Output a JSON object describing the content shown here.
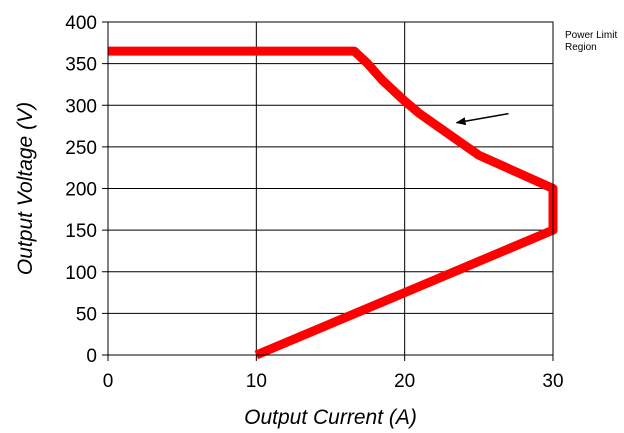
{
  "chart_data": {
    "type": "line",
    "xlabel": "Output Current (A)",
    "ylabel": "Output Voltage (V)",
    "xlim": [
      0,
      30
    ],
    "ylim": [
      0,
      400
    ],
    "x_ticks": [
      0,
      10,
      20,
      30
    ],
    "y_ticks": [
      0,
      50,
      100,
      150,
      200,
      250,
      300,
      350,
      400
    ],
    "grid": true,
    "series": [
      {
        "color": "#ff0000",
        "points": [
          [
            0,
            365
          ],
          [
            16.6,
            365
          ],
          [
            17.5,
            350
          ],
          [
            18.5,
            330
          ],
          [
            20,
            305
          ],
          [
            21,
            290
          ],
          [
            23,
            265
          ],
          [
            25,
            240
          ],
          [
            27.5,
            220
          ],
          [
            30,
            200
          ],
          [
            30,
            150
          ],
          [
            20,
            75
          ],
          [
            10,
            0
          ]
        ]
      }
    ],
    "annotation": {
      "lines": [
        "Power Limit",
        "Region"
      ],
      "arrow_from": [
        27,
        290
      ],
      "arrow_to": [
        23.5,
        279
      ]
    }
  }
}
